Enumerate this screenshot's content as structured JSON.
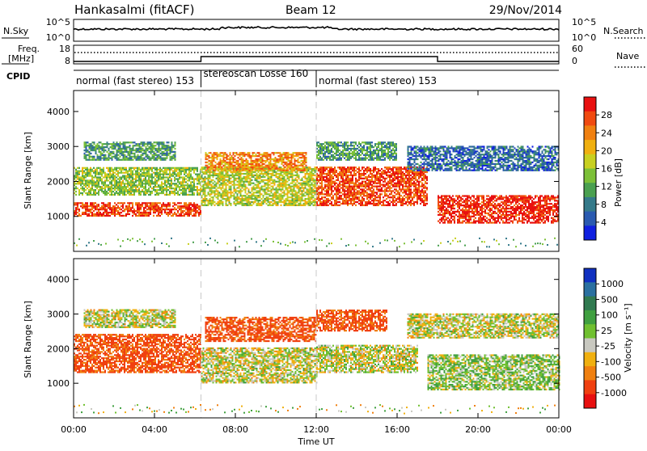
{
  "header": {
    "station": "Hankasalmi (fitACF)",
    "beam": "Beam 12",
    "date": "29/Nov/2014"
  },
  "status_panels": {
    "nsky_label": "N.Sky",
    "nsearch_label": "N.Search",
    "nsky_ticks": [
      "10^5",
      "10^0"
    ],
    "nsearch_ticks": [
      "10^5",
      "10^0"
    ],
    "freq_label_line1": "Freq.",
    "freq_label_line2": "[MHz]",
    "freq_ticks": [
      "18",
      "8"
    ],
    "nave_label": "Nave",
    "nave_ticks": [
      "60",
      "0"
    ],
    "cpid_label": "CPID",
    "modes": [
      {
        "label": "normal (fast stereo) 153",
        "start_hour": 0,
        "end_hour": 6.3
      },
      {
        "label": "stereoscan Losse 160",
        "start_hour": 6.3,
        "end_hour": 12
      },
      {
        "label": "normal (fast stereo) 153",
        "start_hour": 12,
        "end_hour": 24
      }
    ]
  },
  "chart_data": [
    {
      "type": "heatmap",
      "panel": "power",
      "ylabel": "Slant Range [km]",
      "xlabel": "",
      "ylim": [
        0,
        4600
      ],
      "yticks": [
        1000,
        2000,
        3000,
        4000
      ],
      "xlim_hours": [
        0,
        24
      ],
      "colorbar": {
        "label": "Power [dB]",
        "ticks": [
          "4",
          "8",
          "12",
          "16",
          "20",
          "24",
          "28"
        ],
        "range": [
          0,
          30
        ],
        "colors": [
          "#1020e0",
          "#2a5ab0",
          "#357a8a",
          "#4aa050",
          "#7cc038",
          "#c8d020",
          "#f0b010",
          "#f08010",
          "#f04a10",
          "#e81010"
        ]
      },
      "echo_bands": [
        {
          "hour_start": 0.0,
          "hour_end": 6.3,
          "range_low": 1000,
          "range_high": 1400,
          "power_db": 26
        },
        {
          "hour_start": 0.0,
          "hour_end": 6.3,
          "range_low": 1600,
          "range_high": 2400,
          "power_db": 14
        },
        {
          "hour_start": 0.5,
          "hour_end": 5.0,
          "range_low": 2600,
          "range_high": 3100,
          "power_db": 10
        },
        {
          "hour_start": 6.3,
          "hour_end": 12.0,
          "range_low": 1300,
          "range_high": 2400,
          "power_db": 16
        },
        {
          "hour_start": 6.5,
          "hour_end": 11.5,
          "range_low": 2300,
          "range_high": 2800,
          "power_db": 22
        },
        {
          "hour_start": 12.0,
          "hour_end": 17.5,
          "range_low": 1300,
          "range_high": 2400,
          "power_db": 26
        },
        {
          "hour_start": 12.0,
          "hour_end": 16.0,
          "range_low": 2600,
          "range_high": 3100,
          "power_db": 10
        },
        {
          "hour_start": 16.5,
          "hour_end": 24.0,
          "range_low": 2300,
          "range_high": 3000,
          "power_db": 6
        },
        {
          "hour_start": 18.0,
          "hour_end": 24.0,
          "range_low": 800,
          "range_high": 1600,
          "power_db": 28
        }
      ]
    },
    {
      "type": "heatmap",
      "panel": "velocity",
      "ylabel": "Slant Range [km]",
      "xlabel": "Time UT",
      "ylim": [
        0,
        4600
      ],
      "yticks": [
        1000,
        2000,
        3000,
        4000
      ],
      "xlim_hours": [
        0,
        24
      ],
      "xtick_labels": [
        "00:00",
        "04:00",
        "08:00",
        "12:00",
        "16:00",
        "20:00",
        "00:00"
      ],
      "colorbar": {
        "label": "Velocity [m s⁻¹]",
        "ticks": [
          "1000",
          "500",
          "100",
          "25",
          "-25",
          "-100",
          "-500",
          "-1000"
        ],
        "colors": [
          "#1030c0",
          "#2a70a0",
          "#307a50",
          "#40a040",
          "#70c030",
          "#c8c8c0",
          "#f0b010",
          "#f08010",
          "#f04010",
          "#e81010"
        ]
      },
      "echo_bands": [
        {
          "hour_start": 0.0,
          "hour_end": 6.3,
          "range_low": 1300,
          "range_high": 2400,
          "velocity": -300
        },
        {
          "hour_start": 0.5,
          "hour_end": 5.0,
          "range_low": 2600,
          "range_high": 3100,
          "velocity": 0
        },
        {
          "hour_start": 6.3,
          "hour_end": 12.0,
          "range_low": 1000,
          "range_high": 2000,
          "velocity": 0
        },
        {
          "hour_start": 6.5,
          "hour_end": 12.0,
          "range_low": 2200,
          "range_high": 2900,
          "velocity": -300
        },
        {
          "hour_start": 12.0,
          "hour_end": 17.0,
          "range_low": 1300,
          "range_high": 2100,
          "velocity": 0
        },
        {
          "hour_start": 12.0,
          "hour_end": 15.5,
          "range_low": 2500,
          "range_high": 3100,
          "velocity": -300
        },
        {
          "hour_start": 16.5,
          "hour_end": 24.0,
          "range_low": 2300,
          "range_high": 3000,
          "velocity": 0
        },
        {
          "hour_start": 17.5,
          "hour_end": 24.0,
          "range_low": 800,
          "range_high": 1800,
          "velocity": 60
        }
      ]
    }
  ]
}
